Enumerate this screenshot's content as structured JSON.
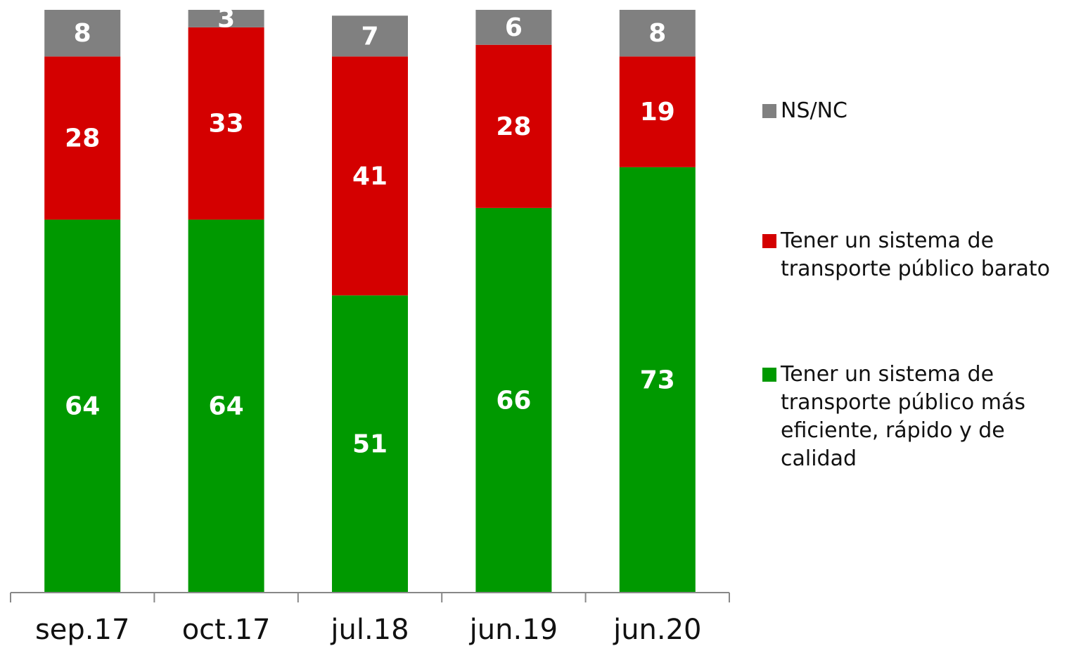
{
  "chart_data": {
    "type": "stacked_bar",
    "categories": [
      "sep.17",
      "oct.17",
      "jul.18",
      "jun.19",
      "jun.20"
    ],
    "series": [
      {
        "name": "Tener un sistema de transporte público más eficiente, rápido y de calidad",
        "color": "#009900",
        "values": [
          64,
          64,
          51,
          66,
          73
        ]
      },
      {
        "name": "Tener un sistema de transporte público barato",
        "color": "#d40000",
        "values": [
          28,
          33,
          41,
          28,
          19
        ]
      },
      {
        "name": "NS/NC",
        "color": "#808080",
        "values": [
          8,
          3,
          7,
          6,
          8
        ]
      }
    ],
    "ylim": [
      0,
      100
    ],
    "legend": "right"
  }
}
